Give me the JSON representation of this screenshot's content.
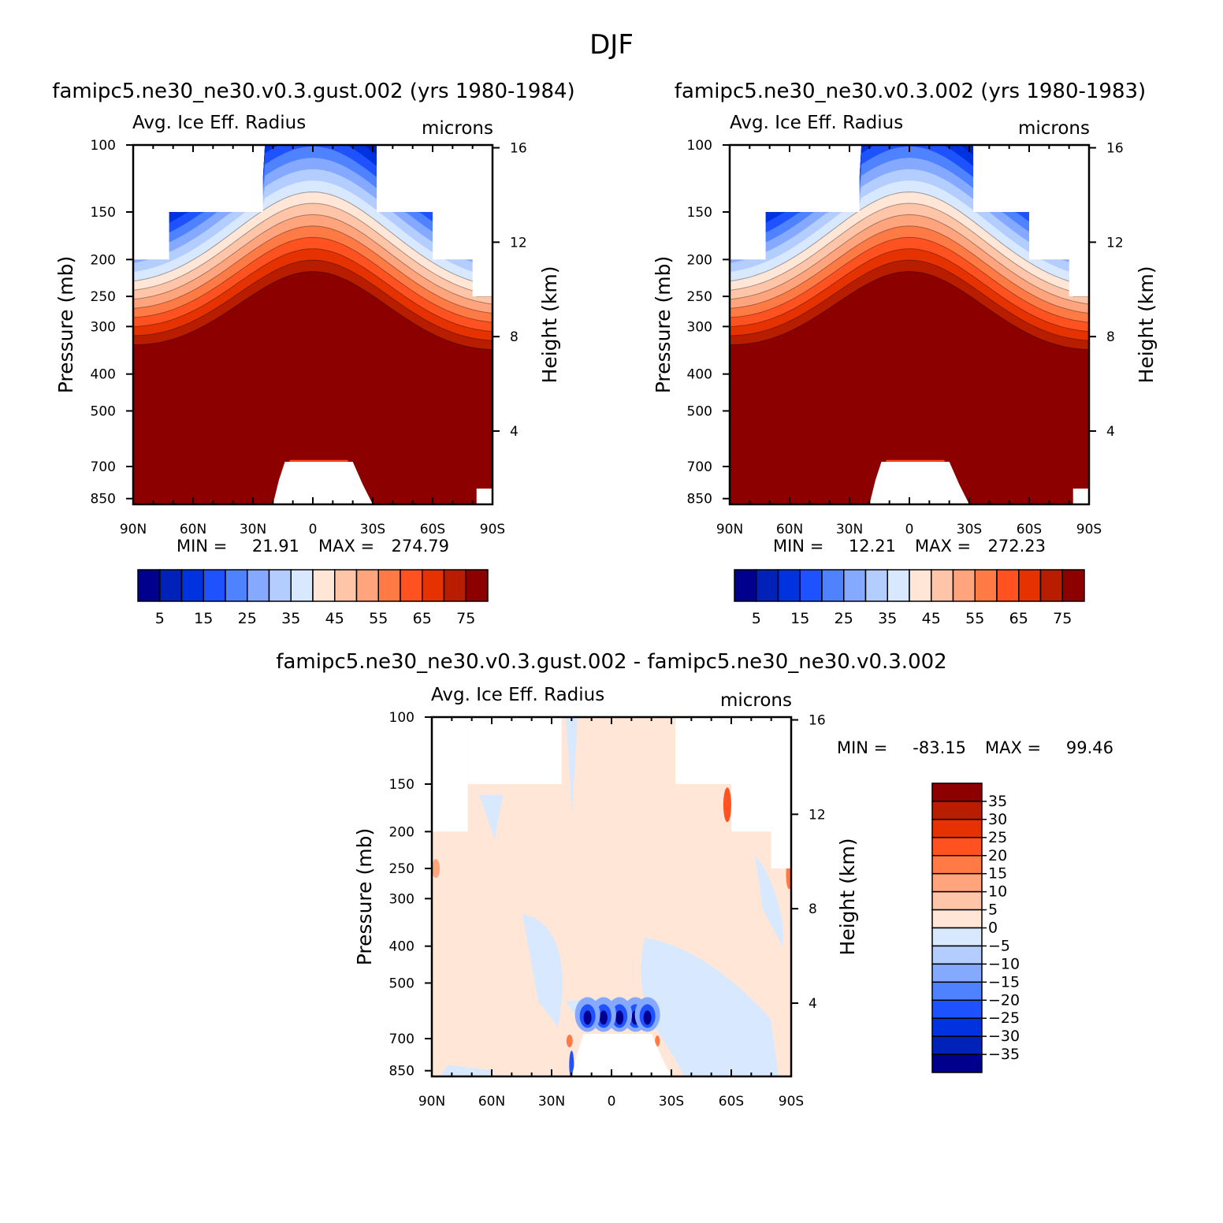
{
  "title": "DJF",
  "diff_title": "famipc5.ne30_ne30.v0.3.gust.002 - famipc5.ne30_ne30.v0.3.002",
  "chart_data": [
    {
      "type": "heatmap",
      "case_title": "famipc5.ne30_ne30.v0.3.gust.002 (yrs 1980-1984)",
      "left_subtitle": "Avg. Ice Eff. Radius",
      "right_subtitle": "microns",
      "ylabel": "Pressure (mb)",
      "ylabel_right": "Height (km)",
      "x_ticks": [
        "90N",
        "60N",
        "30N",
        "0",
        "30S",
        "60S",
        "90S"
      ],
      "y_ticks": [
        "100",
        "150",
        "200",
        "250",
        "300",
        "400",
        "500",
        "700",
        "850"
      ],
      "y_ticks_right": [
        "16",
        "12",
        "8",
        "4"
      ],
      "ylim": [
        880,
        100
      ],
      "min_label": "MIN =",
      "min_value": "21.91",
      "max_label": "MAX =",
      "max_value": "274.79",
      "colorbar_labels": [
        "5",
        "15",
        "25",
        "35",
        "45",
        "55",
        "65",
        "75"
      ],
      "colorbar_levels": [
        0,
        5,
        10,
        15,
        20,
        25,
        30,
        35,
        40,
        45,
        50,
        55,
        60,
        65,
        70,
        75,
        80
      ],
      "colors": [
        "#00008c",
        "#0022b8",
        "#0033e0",
        "#1f52ff",
        "#4f82ff",
        "#84a9ff",
        "#b3cdff",
        "#d8e8ff",
        "#ffe6d6",
        "#ffc5a8",
        "#ffa47c",
        "#ff7a44",
        "#ff5220",
        "#e63200",
        "#b81d00",
        "#8c0000"
      ]
    },
    {
      "type": "heatmap",
      "case_title": "famipc5.ne30_ne30.v0.3.002 (yrs 1980-1983)",
      "left_subtitle": "Avg. Ice Eff. Radius",
      "right_subtitle": "microns",
      "ylabel": "Pressure (mb)",
      "ylabel_right": "Height (km)",
      "x_ticks": [
        "90N",
        "60N",
        "30N",
        "0",
        "30S",
        "60S",
        "90S"
      ],
      "y_ticks": [
        "100",
        "150",
        "200",
        "250",
        "300",
        "400",
        "500",
        "700",
        "850"
      ],
      "y_ticks_right": [
        "16",
        "12",
        "8",
        "4"
      ],
      "ylim": [
        880,
        100
      ],
      "min_label": "MIN =",
      "min_value": "12.21",
      "max_label": "MAX =",
      "max_value": "272.23",
      "colorbar_labels": [
        "5",
        "15",
        "25",
        "35",
        "45",
        "55",
        "65",
        "75"
      ],
      "colorbar_levels": [
        0,
        5,
        10,
        15,
        20,
        25,
        30,
        35,
        40,
        45,
        50,
        55,
        60,
        65,
        70,
        75,
        80
      ],
      "colors": [
        "#00008c",
        "#0022b8",
        "#0033e0",
        "#1f52ff",
        "#4f82ff",
        "#84a9ff",
        "#b3cdff",
        "#d8e8ff",
        "#ffe6d6",
        "#ffc5a8",
        "#ffa47c",
        "#ff7a44",
        "#ff5220",
        "#e63200",
        "#b81d00",
        "#8c0000"
      ]
    },
    {
      "type": "heatmap",
      "case_title": "famipc5.ne30_ne30.v0.3.gust.002 - famipc5.ne30_ne30.v0.3.002",
      "left_subtitle": "Avg. Ice Eff. Radius",
      "right_subtitle": "microns",
      "ylabel": "Pressure (mb)",
      "ylabel_right": "Height (km)",
      "x_ticks": [
        "90N",
        "60N",
        "30N",
        "0",
        "30S",
        "60S",
        "90S"
      ],
      "y_ticks": [
        "100",
        "150",
        "200",
        "250",
        "300",
        "400",
        "500",
        "700",
        "850"
      ],
      "y_ticks_right": [
        "16",
        "12",
        "8",
        "4"
      ],
      "ylim": [
        880,
        100
      ],
      "min_label": "MIN =",
      "min_value": "-83.15",
      "max_label": "MAX =",
      "max_value": "99.46",
      "colorbar_labels": [
        "35",
        "30",
        "25",
        "20",
        "15",
        "10",
        "5",
        "0",
        "-5",
        "-10",
        "-15",
        "-20",
        "-25",
        "-30",
        "-35"
      ],
      "colors": [
        "#8c0000",
        "#b81d00",
        "#e63200",
        "#ff5220",
        "#ff7a44",
        "#ffa47c",
        "#ffc5a8",
        "#ffe6d6",
        "#d8e8ff",
        "#b3cdff",
        "#84a9ff",
        "#4f82ff",
        "#1f52ff",
        "#0033e0",
        "#0022b8",
        "#00008c"
      ]
    }
  ]
}
